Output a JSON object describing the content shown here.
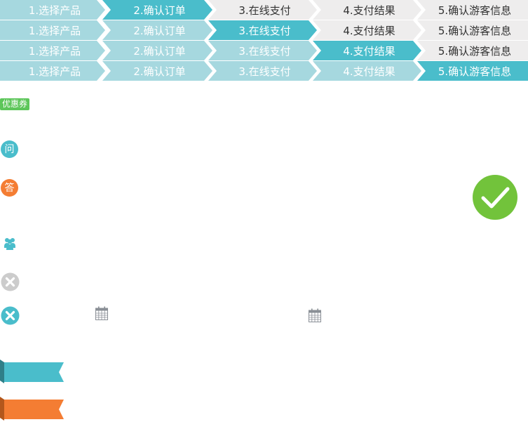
{
  "progress_rows": [
    {
      "steps": [
        {
          "label": "1.选择产品",
          "state": "done"
        },
        {
          "label": "2.确认订单",
          "state": "active"
        },
        {
          "label": "3.在线支付",
          "state": "todo"
        },
        {
          "label": "4.支付结果",
          "state": "todo"
        },
        {
          "label": "5.确认游客信息",
          "state": "todo"
        }
      ]
    },
    {
      "steps": [
        {
          "label": "1.选择产品",
          "state": "done"
        },
        {
          "label": "2.确认订单",
          "state": "done"
        },
        {
          "label": "3.在线支付",
          "state": "active"
        },
        {
          "label": "4.支付结果",
          "state": "todo"
        },
        {
          "label": "5.确认游客信息",
          "state": "todo"
        }
      ]
    },
    {
      "steps": [
        {
          "label": "1.选择产品",
          "state": "done"
        },
        {
          "label": "2.确认订单",
          "state": "done"
        },
        {
          "label": "3.在线支付",
          "state": "done"
        },
        {
          "label": "4.支付结果",
          "state": "active"
        },
        {
          "label": "5.确认游客信息",
          "state": "todo"
        }
      ]
    },
    {
      "steps": [
        {
          "label": "1.选择产品",
          "state": "done"
        },
        {
          "label": "2.确认订单",
          "state": "done"
        },
        {
          "label": "3.在线支付",
          "state": "done"
        },
        {
          "label": "4.支付结果",
          "state": "done"
        },
        {
          "label": "5.确认游客信息",
          "state": "active"
        }
      ]
    }
  ],
  "coupon_tag": "优惠券",
  "question_badge": "问",
  "answer_badge": "答",
  "icons": {
    "success": "check-circle-icon",
    "group": "group-icon",
    "close_gray": "close-circle-icon",
    "close_teal": "close-circle-icon",
    "calendar": "calendar-icon",
    "ribbon_teal": "ribbon-tag",
    "ribbon_orange": "ribbon-tag"
  },
  "colors": {
    "teal": "#4abdcb",
    "teal_light": "#a6d8df",
    "gray": "#eeeded",
    "orange": "#f47d33",
    "green": "#5dc65a",
    "check_green": "#72c33b"
  }
}
